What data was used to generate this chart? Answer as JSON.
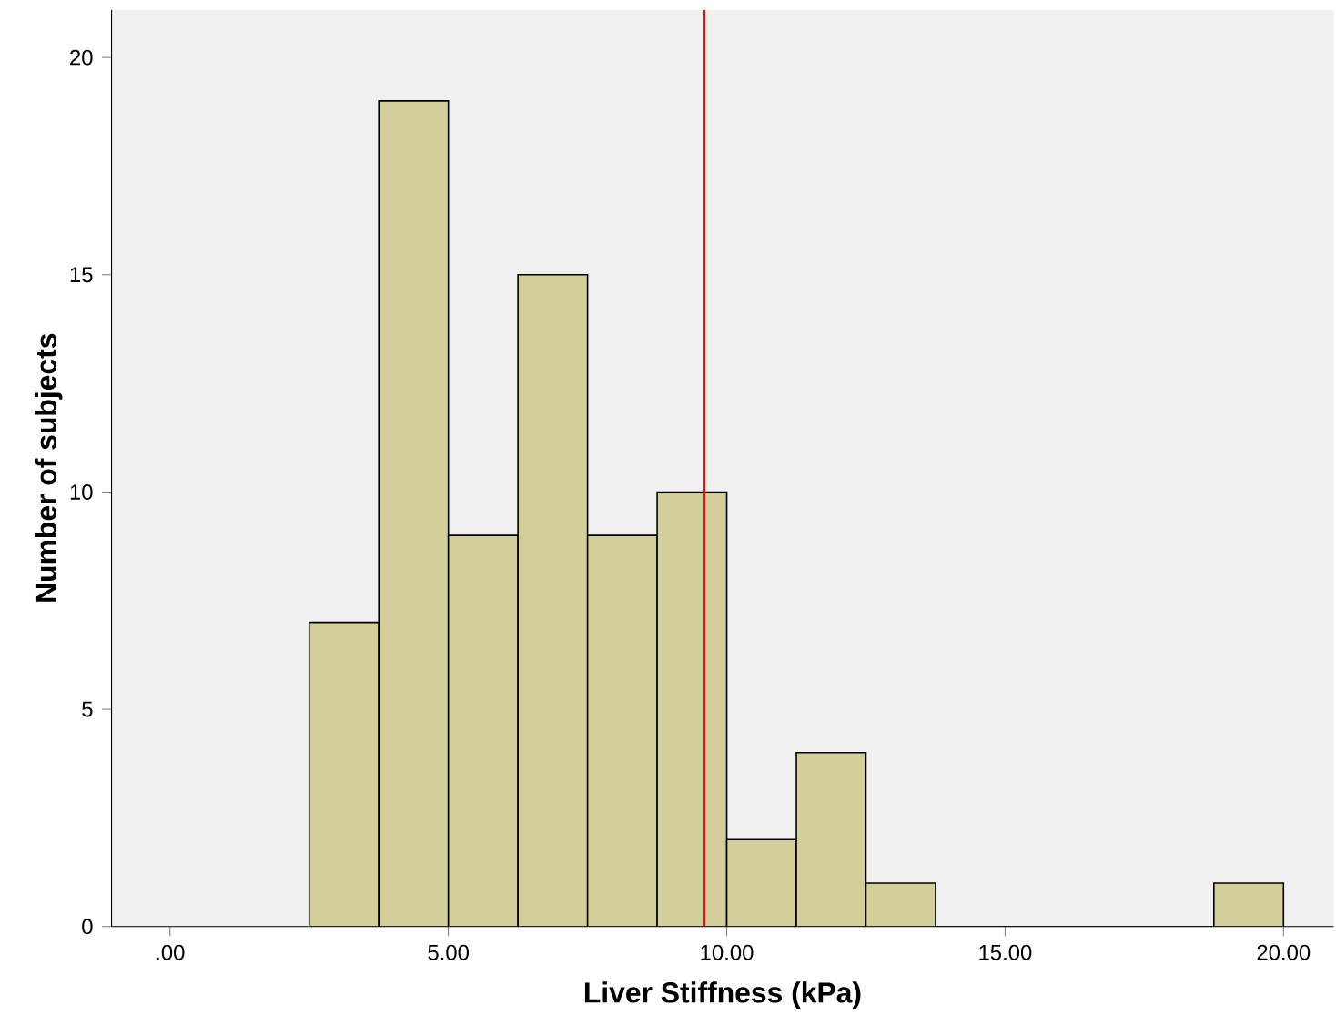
{
  "chart_data": {
    "type": "histogram",
    "xlabel": "Liver Stiffness (kPa)",
    "ylabel": "Number of subjects",
    "bins": [
      2.5,
      3.75,
      5,
      6.25,
      7.5,
      8.75,
      10,
      11.25,
      12.5,
      13.75,
      15,
      16.25,
      17.5,
      18.75,
      20
    ],
    "values": [
      7,
      19,
      9,
      15,
      9,
      10,
      2,
      4,
      1,
      0,
      0,
      0,
      0,
      1
    ],
    "color": "#d3cf9b",
    "xlim": [
      -1.05,
      20.9
    ],
    "ylim": [
      0,
      21.1
    ],
    "xticks": [
      {
        "value": 0,
        "label": ".00"
      },
      {
        "value": 5,
        "label": "5.00"
      },
      {
        "value": 10,
        "label": "10.00"
      },
      {
        "value": 15,
        "label": "15.00"
      },
      {
        "value": 20,
        "label": "20.00"
      }
    ],
    "yticks": [
      0,
      5,
      10,
      15,
      20
    ],
    "ref_lines": [
      {
        "axis": "x",
        "value": 9.6,
        "color": "#ff0000"
      }
    ]
  }
}
